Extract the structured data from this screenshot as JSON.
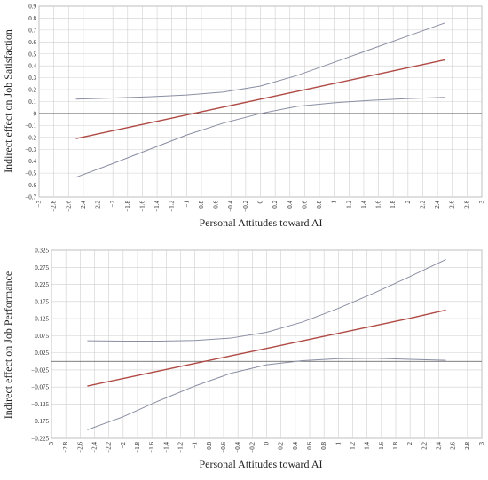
{
  "chart_data": [
    {
      "type": "line",
      "title": "",
      "xlabel": "Personal Attitudes toward AI",
      "ylabel": "Indirect effect on Job Satisfaction",
      "xlim": [
        -3,
        3
      ],
      "ylim": [
        -0.7,
        0.9
      ],
      "xticks": [
        -3,
        -2.8,
        -2.6,
        -2.4,
        -2.2,
        -2,
        -1.8,
        -1.6,
        -1.4,
        -1.2,
        -1,
        -0.8,
        -0.6,
        -0.4,
        -0.2,
        0,
        0.2,
        0.4,
        0.6,
        0.8,
        1,
        1.2,
        1.4,
        1.6,
        1.8,
        2,
        2.2,
        2.4,
        2.6,
        2.8,
        3
      ],
      "xtick_labels": [
        "−3",
        "−2.8",
        "−2.6",
        "−2.4",
        "−2.2",
        "−2",
        "−1.8",
        "−1.6",
        "−1.4",
        "−1.2",
        "−1",
        "−0.8",
        "−0.6",
        "−0.4",
        "−0.2",
        "0",
        "0.2",
        "0.4",
        "0.6",
        "0.8",
        "1",
        "1.2",
        "1.4",
        "1.6",
        "1.8",
        "2",
        "2.2",
        "2.4",
        "2.6",
        "2.8",
        "3"
      ],
      "yticks": [
        -0.7,
        -0.6,
        -0.5,
        -0.4,
        -0.3,
        -0.2,
        -0.1,
        0,
        0.1,
        0.2,
        0.3,
        0.4,
        0.5,
        0.6,
        0.7,
        0.8,
        0.9
      ],
      "ytick_labels": [
        "−0.7",
        "−0.6",
        "−0.5",
        "−0.4",
        "−0.3",
        "−0.2",
        "−0.1",
        "0",
        "0.1",
        "0.2",
        "0.3",
        "0.4",
        "0.5",
        "0.6",
        "0.7",
        "0.8",
        "0.9"
      ],
      "grid": true,
      "zero_line": true,
      "x": [
        -2.5,
        -2.0,
        -1.5,
        -1.0,
        -0.5,
        0,
        0.5,
        1.0,
        1.5,
        2.0,
        2.5
      ],
      "series": [
        {
          "role": "upper-bound",
          "color": "#8a8ea3",
          "values": [
            0.12,
            0.13,
            0.14,
            0.155,
            0.18,
            0.23,
            0.32,
            0.43,
            0.54,
            0.65,
            0.76
          ]
        },
        {
          "role": "estimate",
          "color": "#b04a45",
          "values": [
            -0.21,
            -0.144,
            -0.078,
            -0.012,
            0.054,
            0.12,
            0.186,
            0.252,
            0.318,
            0.384,
            0.45
          ]
        },
        {
          "role": "lower-bound",
          "color": "#8a8ea3",
          "values": [
            -0.535,
            -0.42,
            -0.3,
            -0.18,
            -0.08,
            0.0,
            0.06,
            0.09,
            0.11,
            0.125,
            0.135
          ]
        }
      ]
    },
    {
      "type": "line",
      "title": "",
      "xlabel": "Personal Attitudes toward AI",
      "ylabel": "Indirect effect on Job Performance",
      "xlim": [
        -3,
        3
      ],
      "ylim": [
        -0.225,
        0.325
      ],
      "xticks": [
        -3,
        -2.8,
        -2.6,
        -2.4,
        -2.2,
        -2,
        -1.8,
        -1.6,
        -1.4,
        -1.2,
        -1,
        -0.8,
        -0.6,
        -0.4,
        -0.2,
        0,
        0.2,
        0.4,
        0.6,
        0.8,
        1,
        1.2,
        1.4,
        1.6,
        1.8,
        2,
        2.2,
        2.4,
        2.6,
        2.8,
        3
      ],
      "xtick_labels": [
        "−3",
        "−2.8",
        "−2.6",
        "−2.4",
        "−2.2",
        "−2",
        "−1.8",
        "−1.6",
        "−1.4",
        "−1.2",
        "−1",
        "−0.8",
        "−0.6",
        "−0.4",
        "−0.2",
        "0",
        "0.2",
        "0.4",
        "0.6",
        "0.8",
        "1",
        "1.2",
        "1.4",
        "1.6",
        "1.8",
        "2",
        "2.2",
        "2.4",
        "2.6",
        "2.8",
        "3"
      ],
      "yticks": [
        -0.225,
        -0.175,
        -0.125,
        -0.075,
        -0.025,
        0.025,
        0.075,
        0.125,
        0.175,
        0.225,
        0.275,
        0.325
      ],
      "ytick_labels": [
        "−0.225",
        "−0.175",
        "−0.125",
        "−0.075",
        "−0.025",
        "0.025",
        "0.075",
        "0.125",
        "0.175",
        "0.225",
        "0.275",
        "0.325"
      ],
      "grid": true,
      "zero_line": true,
      "x": [
        -2.5,
        -2.0,
        -1.5,
        -1.0,
        -0.5,
        0,
        0.5,
        1.0,
        1.5,
        2.0,
        2.5
      ],
      "series": [
        {
          "role": "upper-bound",
          "color": "#8a8ea3",
          "values": [
            0.06,
            0.059,
            0.059,
            0.061,
            0.068,
            0.085,
            0.115,
            0.155,
            0.2,
            0.248,
            0.298
          ]
        },
        {
          "role": "estimate",
          "color": "#b04a45",
          "values": [
            -0.072,
            -0.05,
            -0.028,
            -0.006,
            0.016,
            0.038,
            0.06,
            0.082,
            0.104,
            0.126,
            0.15
          ]
        },
        {
          "role": "lower-bound",
          "color": "#8a8ea3",
          "values": [
            -0.2,
            -0.162,
            -0.115,
            -0.072,
            -0.035,
            -0.01,
            0.002,
            0.008,
            0.009,
            0.006,
            0.003
          ]
        }
      ]
    }
  ]
}
